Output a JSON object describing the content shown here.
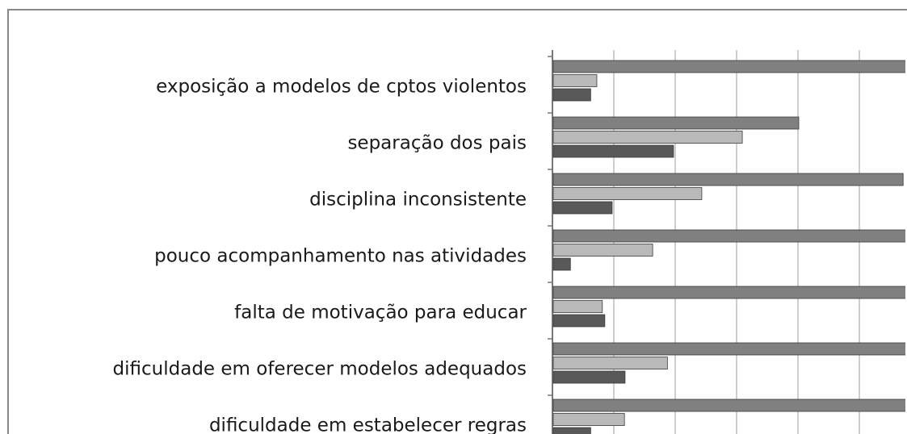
{
  "chart_data": {
    "type": "bar",
    "orientation": "horizontal",
    "categories": [
      "exposição a modelos de cptos violentos",
      "separação dos pais",
      "disciplina inconsistente",
      "pouco acompanhamento nas atividades",
      "falta de motivação para educar",
      "dificuldade em oferecer modelos adequados",
      "dificuldade em estabelecer regras"
    ],
    "series": [
      {
        "color": "#808080",
        "values": [
          6,
          4.0,
          5.7,
          6,
          6,
          6,
          6
        ]
      },
      {
        "color": "#b9b9b9",
        "values": [
          0.71,
          3.08,
          2.42,
          1.62,
          0.8,
          1.86,
          1.16
        ]
      },
      {
        "color": "#595959",
        "values": [
          0.61,
          1.96,
          0.96,
          0.28,
          0.84,
          1.17,
          0.61
        ]
      }
    ],
    "xlim": [
      0,
      6
    ],
    "xticks": [
      0,
      1,
      2,
      3,
      4,
      5,
      6
    ],
    "grid": true
  }
}
